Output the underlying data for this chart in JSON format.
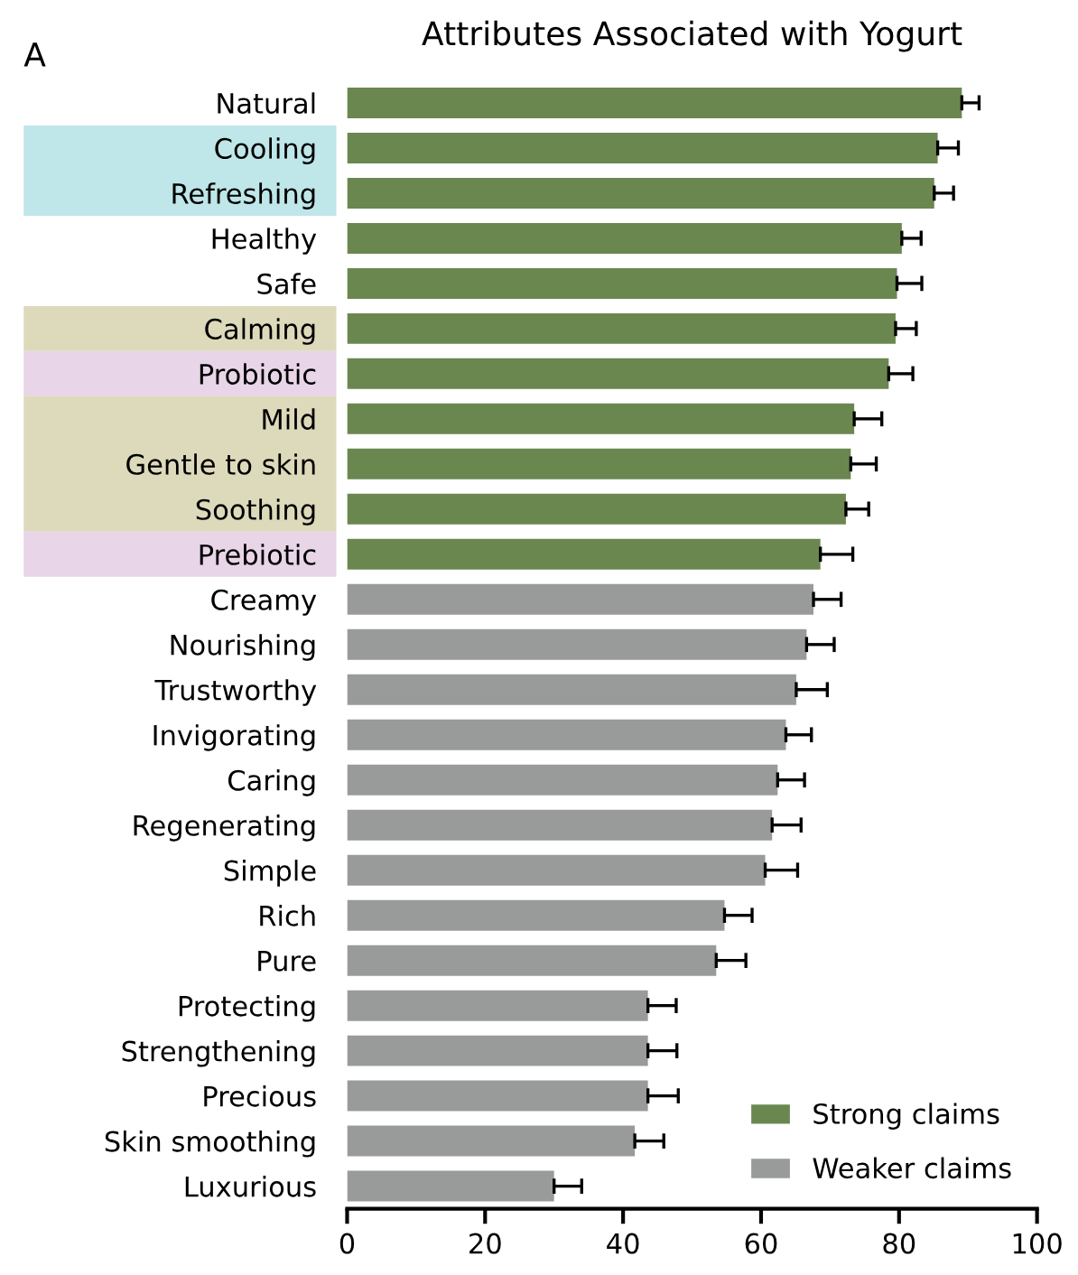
{
  "chart_data": {
    "type": "bar",
    "orientation": "horizontal",
    "title": "Attributes Associated with Yogurt",
    "annotations": [
      "A"
    ],
    "categories": [
      "Natural",
      "Cooling",
      "Refreshing",
      "Healthy",
      "Safe",
      "Calming",
      "Probiotic",
      "Mild",
      "Gentle to skin",
      "Soothing",
      "Prebiotic",
      "Creamy",
      "Nourishing",
      "Trustworthy",
      "Invigorating",
      "Caring",
      "Regenerating",
      "Simple",
      "Rich",
      "Pure",
      "Protecting",
      "Strengthening",
      "Precious",
      "Skin smoothing",
      "Luxurious"
    ],
    "series": [
      {
        "name": "Strong claims",
        "color": "#6b8750",
        "values": [
          89.1,
          85.6,
          85.1,
          80.4,
          79.7,
          79.5,
          78.5,
          73.5,
          73.0,
          72.3,
          68.6,
          null,
          null,
          null,
          null,
          null,
          null,
          null,
          null,
          null,
          null,
          null,
          null,
          null,
          null
        ],
        "errors": [
          2.5,
          3.0,
          2.8,
          2.8,
          3.6,
          3.0,
          3.5,
          4.0,
          3.7,
          3.3,
          4.7,
          null,
          null,
          null,
          null,
          null,
          null,
          null,
          null,
          null,
          null,
          null,
          null,
          null,
          null
        ]
      },
      {
        "name": "Weaker claims",
        "color": "#999b9b",
        "values": [
          null,
          null,
          null,
          null,
          null,
          null,
          null,
          null,
          null,
          null,
          null,
          67.6,
          66.6,
          65.1,
          63.6,
          62.4,
          61.6,
          60.6,
          54.7,
          53.5,
          43.6,
          43.6,
          43.6,
          41.7,
          30.0
        ],
        "errors": [
          null,
          null,
          null,
          null,
          null,
          null,
          null,
          null,
          null,
          null,
          null,
          4.0,
          4.0,
          4.5,
          3.7,
          3.9,
          4.2,
          4.7,
          4.0,
          4.3,
          4.1,
          4.2,
          4.4,
          4.2,
          4.0
        ]
      }
    ],
    "xlim": [
      0,
      100
    ],
    "xticks": [
      0,
      20,
      40,
      60,
      80,
      100
    ],
    "legend": "bottom right",
    "grid": false
  }
}
